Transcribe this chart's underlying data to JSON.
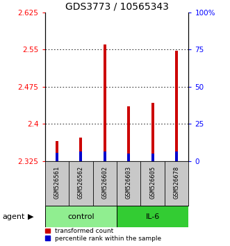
{
  "title": "GDS3773 / 10565343",
  "samples": [
    "GSM526561",
    "GSM526562",
    "GSM526602",
    "GSM526603",
    "GSM526605",
    "GSM526678"
  ],
  "groups": [
    {
      "label": "control",
      "indices": [
        0,
        1,
        2
      ],
      "color": "#90EE90"
    },
    {
      "label": "IL-6",
      "indices": [
        3,
        4,
        5
      ],
      "color": "#33CC33"
    }
  ],
  "ymin": 2.325,
  "ymax": 2.625,
  "yticks": [
    2.325,
    2.4,
    2.475,
    2.55,
    2.625
  ],
  "right_yticks": [
    0,
    25,
    50,
    75,
    100
  ],
  "right_ylabels": [
    "0",
    "25",
    "50",
    "75",
    "100%"
  ],
  "bar_total_values": [
    2.365,
    2.372,
    2.56,
    2.435,
    2.442,
    2.547
  ],
  "blue_top_values": [
    2.341,
    2.344,
    2.344,
    2.34,
    2.34,
    2.344
  ],
  "bar_width": 0.12,
  "red_color": "#CC0000",
  "blue_color": "#0000CC",
  "legend_red_label": "transformed count",
  "legend_blue_label": "percentile rank within the sample",
  "agent_label": "agent",
  "label_area_bg": "#C8C8C8",
  "tick_fontsize": 7.5
}
